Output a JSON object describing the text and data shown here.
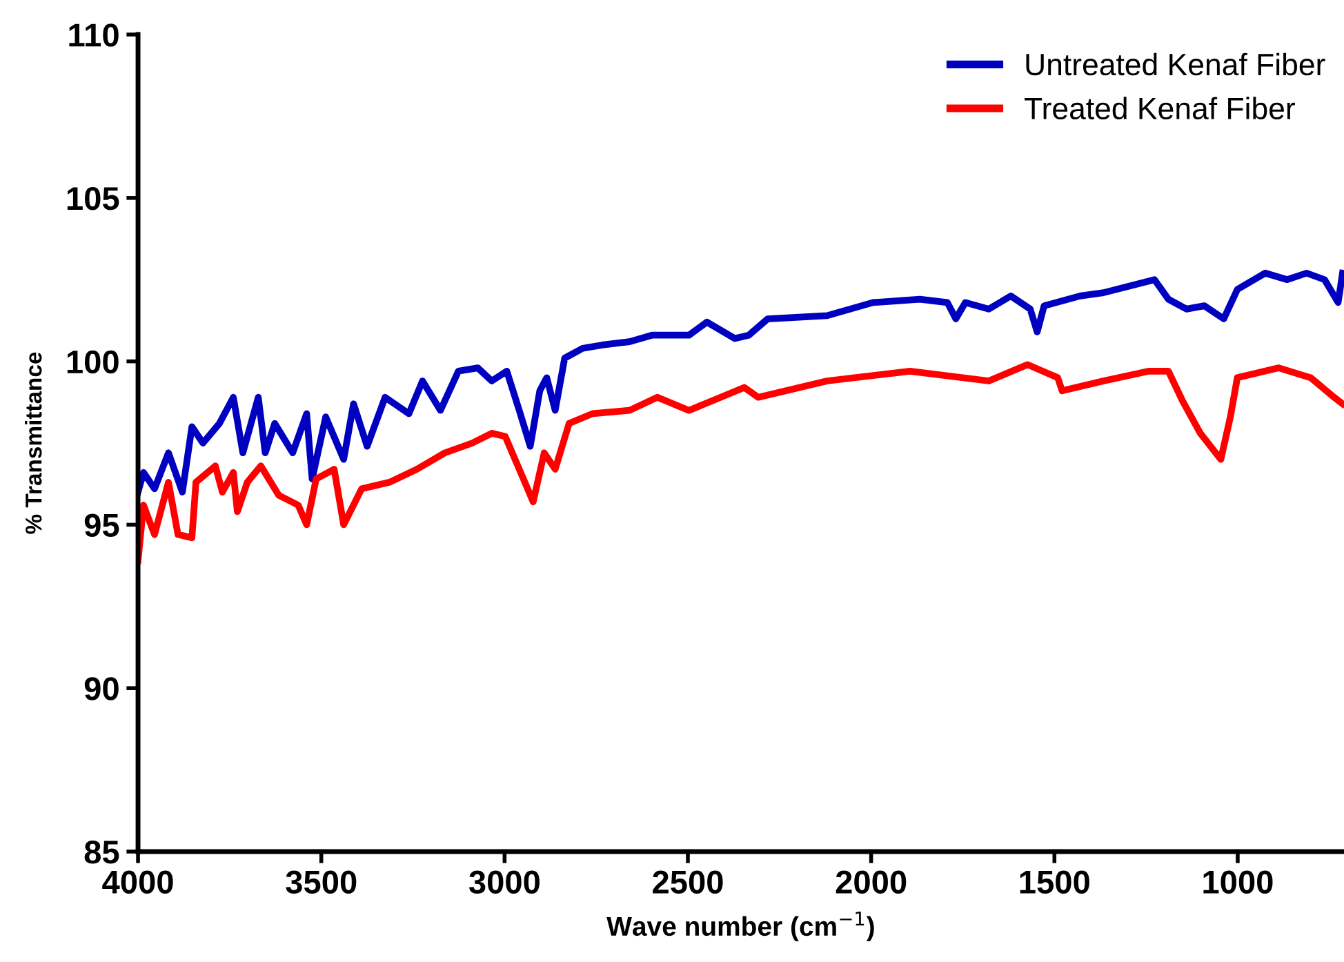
{
  "chart_data": {
    "type": "line",
    "xlabel": "Wave number (cm$^{−1}$)",
    "ylabel": "% Transmittance",
    "xlim": [
      4000,
      710
    ],
    "xticks": [
      4000,
      3500,
      3000,
      2500,
      2000,
      1500,
      1000
    ],
    "ylim": [
      85,
      110
    ],
    "yticks": [
      85,
      90,
      95,
      100,
      105,
      110
    ],
    "grid": false,
    "legend": "top right",
    "marker": "none",
    "line_style": "solid",
    "series": [
      {
        "name": "Untreated Kenaf Fiber",
        "color": "#0000c0",
        "x": [
          4000,
          3985,
          3955,
          3917,
          3879,
          3853,
          3823,
          3778,
          3740,
          3714,
          3672,
          3653,
          3627,
          3578,
          3540,
          3525,
          3488,
          3439,
          3412,
          3375,
          3326,
          3261,
          3224,
          3175,
          3126,
          3073,
          3035,
          2994,
          2960,
          2930,
          2904,
          2885,
          2862,
          2836,
          2787,
          2734,
          2659,
          2598,
          2497,
          2448,
          2372,
          2334,
          2282,
          2120,
          1995,
          1867,
          1792,
          1769,
          1743,
          1679,
          1619,
          1566,
          1547,
          1528,
          1430,
          1366,
          1227,
          1189,
          1140,
          1091,
          1038,
          1001,
          925,
          865,
          812,
          763,
          726,
          714
        ],
        "values": [
          96.0,
          96.6,
          96.1,
          97.2,
          96.0,
          98.0,
          97.5,
          98.1,
          98.9,
          97.2,
          98.9,
          97.2,
          98.1,
          97.2,
          98.4,
          96.4,
          98.3,
          97.0,
          98.7,
          97.4,
          98.9,
          98.4,
          99.4,
          98.5,
          99.7,
          99.8,
          99.4,
          99.7,
          98.5,
          97.4,
          99.1,
          99.5,
          98.5,
          100.1,
          100.4,
          100.5,
          100.6,
          100.8,
          100.8,
          101.2,
          100.7,
          100.8,
          101.3,
          101.4,
          101.8,
          101.9,
          101.8,
          101.3,
          101.8,
          101.6,
          102.0,
          101.6,
          100.9,
          101.7,
          102.0,
          102.1,
          102.5,
          101.9,
          101.6,
          101.7,
          101.3,
          102.2,
          102.7,
          102.5,
          102.7,
          102.5,
          101.8,
          102.7
        ]
      },
      {
        "name": "Treated Kenaf Fiber",
        "color": "#ff0000",
        "x": [
          4000,
          3985,
          3955,
          3917,
          3891,
          3853,
          3842,
          3789,
          3770,
          3740,
          3729,
          3702,
          3665,
          3616,
          3563,
          3540,
          3514,
          3465,
          3439,
          3390,
          3314,
          3239,
          3163,
          3088,
          3035,
          2998,
          2960,
          2922,
          2892,
          2862,
          2824,
          2760,
          2659,
          2583,
          2497,
          2346,
          2308,
          2120,
          1894,
          1679,
          1573,
          1491,
          1479,
          1366,
          1242,
          1189,
          1151,
          1102,
          1046,
          1020,
          1001,
          888,
          801,
          737,
          714
        ],
        "values": [
          93.9,
          95.6,
          94.7,
          96.3,
          94.7,
          94.6,
          96.3,
          96.8,
          96.0,
          96.6,
          95.4,
          96.3,
          96.8,
          95.9,
          95.6,
          95.0,
          96.4,
          96.7,
          95.0,
          96.1,
          96.3,
          96.7,
          97.2,
          97.5,
          97.8,
          97.7,
          96.7,
          95.7,
          97.2,
          96.7,
          98.1,
          98.4,
          98.5,
          98.9,
          98.5,
          99.2,
          98.9,
          99.4,
          99.7,
          99.4,
          99.9,
          99.5,
          99.1,
          99.4,
          99.7,
          99.7,
          98.8,
          97.8,
          97.0,
          98.3,
          99.5,
          99.8,
          99.5,
          98.9,
          98.7
        ]
      }
    ]
  }
}
